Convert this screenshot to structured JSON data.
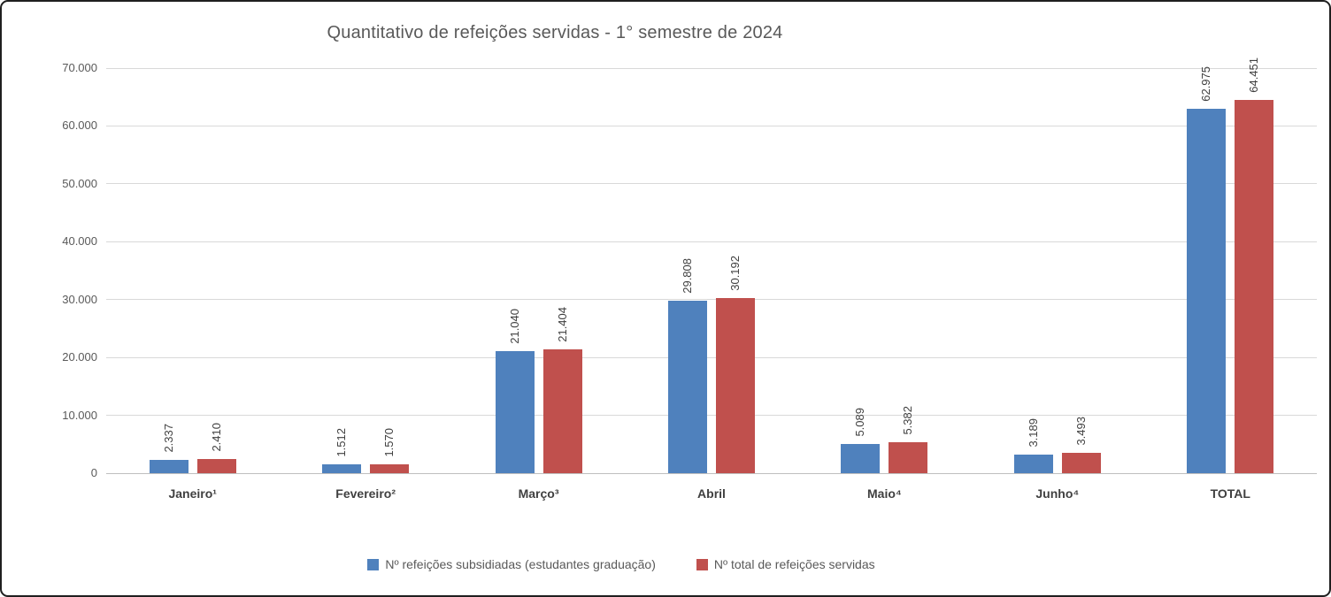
{
  "chart_data": {
    "type": "bar",
    "title": "Quantitativo de refeições servidas - 1° semestre de 2024",
    "categories": [
      "Janeiro¹",
      "Fevereiro²",
      "Março³",
      "Abril",
      "Maio⁴",
      "Junho⁴",
      "TOTAL"
    ],
    "series": [
      {
        "key": "subsidiadas",
        "name": "Nº refeições subsidiadas (estudantes graduação)",
        "color": "#4F81BD",
        "values": [
          2337,
          1512,
          21040,
          29808,
          5089,
          3189,
          62975
        ],
        "value_labels": [
          "2.337",
          "1.512",
          "21.040",
          "29.808",
          "5.089",
          "3.189",
          "62.975"
        ]
      },
      {
        "key": "total",
        "name": "Nº total de refeições servidas",
        "color": "#C0504D",
        "values": [
          2410,
          1570,
          21404,
          30192,
          5382,
          3493,
          64451
        ],
        "value_labels": [
          "2.410",
          "1.570",
          "21.404",
          "30.192",
          "5.382",
          "3.493",
          "64.451"
        ]
      }
    ],
    "xlabel": "",
    "ylabel": "",
    "ylim": [
      0,
      70000
    ],
    "yticks": [
      {
        "value": 0,
        "label": "0"
      },
      {
        "value": 10000,
        "label": "10.000"
      },
      {
        "value": 20000,
        "label": "20.000"
      },
      {
        "value": 30000,
        "label": "30.000"
      },
      {
        "value": 40000,
        "label": "40.000"
      },
      {
        "value": 50000,
        "label": "50.000"
      },
      {
        "value": 60000,
        "label": "60.000"
      },
      {
        "value": 70000,
        "label": "70.000"
      }
    ],
    "grid": true,
    "legend_position": "bottom"
  }
}
